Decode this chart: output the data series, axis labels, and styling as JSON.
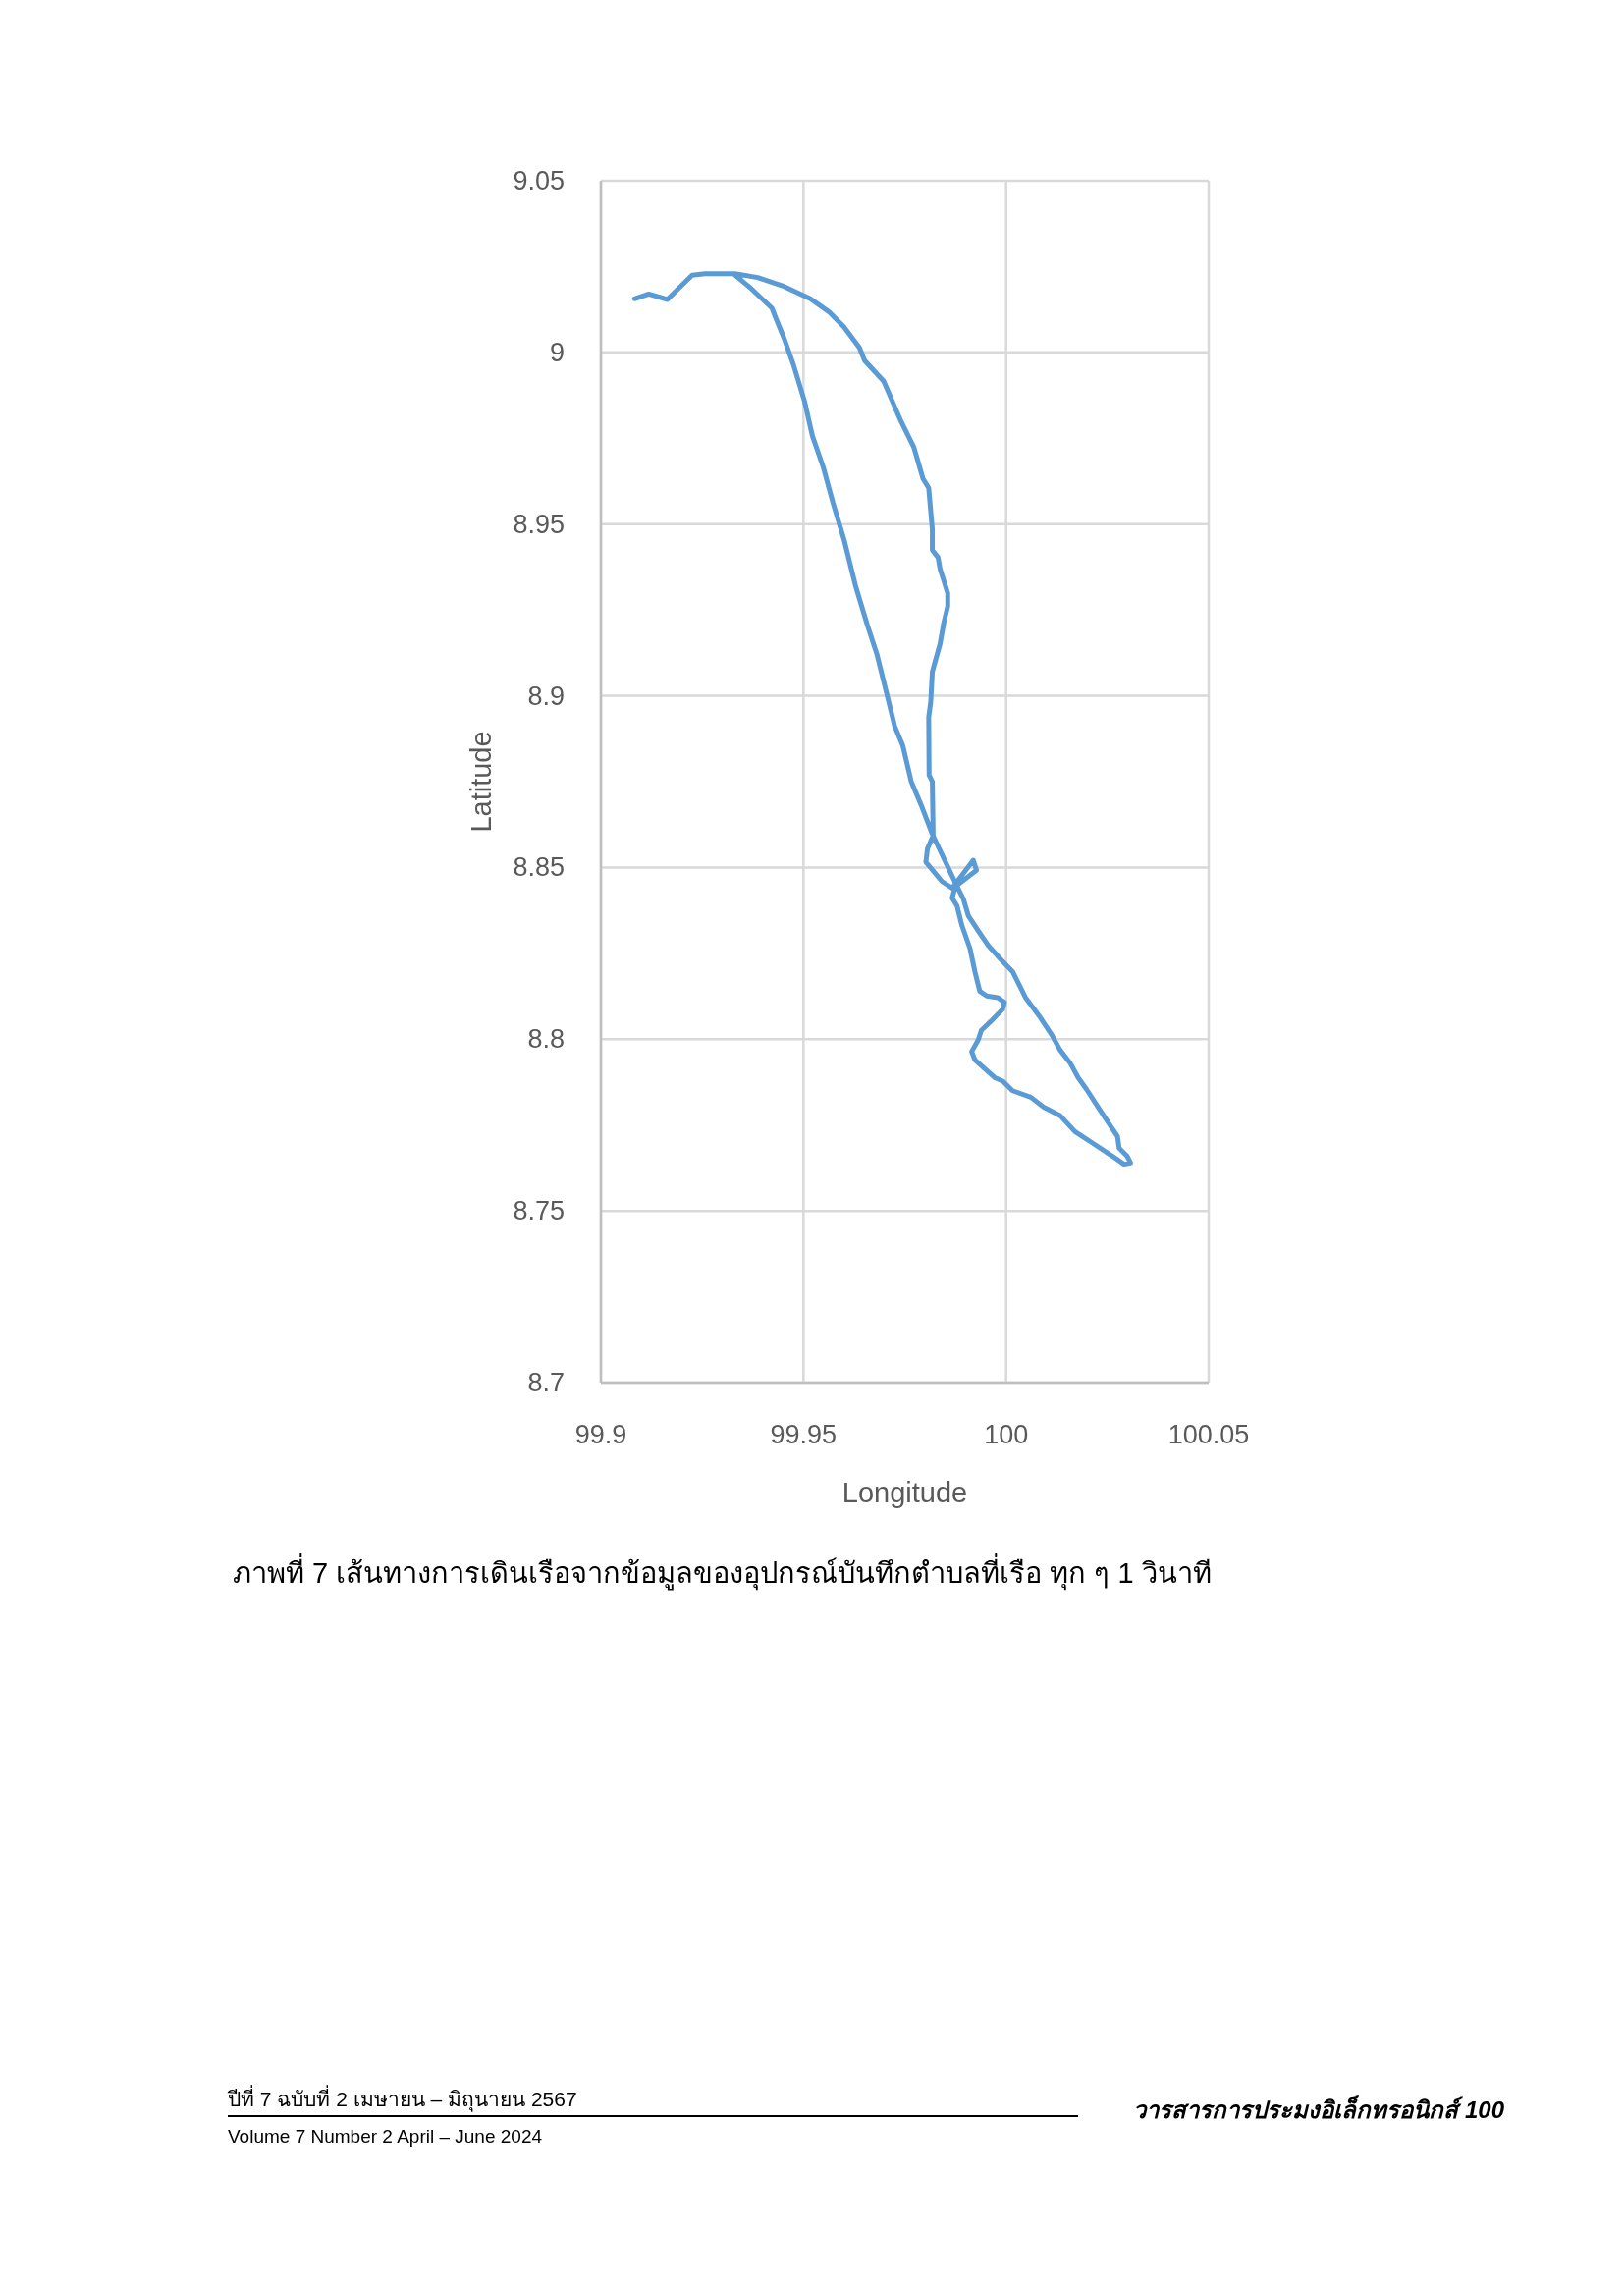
{
  "chart_data": {
    "type": "line",
    "xlabel": "Longitude",
    "ylabel": "Latitude",
    "xlim": [
      99.9,
      100.05
    ],
    "ylim": [
      8.7,
      9.05
    ],
    "xticks": [
      99.9,
      99.95,
      100,
      100.05
    ],
    "yticks": [
      8.7,
      8.75,
      8.8,
      8.85,
      8.9,
      8.95,
      9,
      9.05
    ],
    "grid": true,
    "line_style": "solid",
    "series": [
      {
        "color": "#5b9bd5",
        "x": [
          99.9083,
          99.9118,
          99.9164,
          99.9225,
          99.9257,
          99.9331,
          99.9387,
          99.9452,
          99.9517,
          99.9563,
          99.96,
          99.9638,
          99.9651,
          99.9698,
          99.974,
          99.9772,
          99.9795,
          99.9809,
          99.9818,
          99.9818,
          99.9832,
          99.9837,
          99.9856,
          99.9856,
          99.9846,
          99.9837,
          99.9818,
          99.9814,
          99.9809,
          99.981,
          99.9818,
          99.982,
          99.9806,
          99.9802,
          99.9842,
          99.9867,
          99.9919,
          99.9927,
          99.9875,
          99.9867,
          99.9879,
          99.9891,
          99.9911,
          99.9923,
          99.9935,
          99.9952,
          99.998,
          99.9996,
          99.9992,
          99.9964,
          99.9939,
          99.9931,
          99.9915,
          99.9923,
          99.9972,
          99.9992,
          100.0016,
          100.0061,
          100.0093,
          100.0133,
          100.017,
          100.0214,
          100.0263,
          100.0291,
          100.0307,
          100.0299,
          100.0279,
          100.0275,
          100.0259,
          100.023,
          100.0198,
          100.0178,
          100.0158,
          100.0133,
          100.0113,
          100.0081,
          100.0048,
          100.0016,
          99.9988,
          99.9956,
          99.9931,
          99.9907,
          99.9895,
          99.9879,
          99.9818,
          99.979,
          99.9766,
          99.9745,
          99.9725,
          99.9705,
          99.9681,
          99.9657,
          99.9628,
          99.96,
          99.9573,
          99.9549,
          99.9522,
          99.9503,
          99.9475,
          99.9452,
          99.9433,
          99.9422,
          99.9368,
          99.9331
        ],
        "values": [
          9.0156,
          9.017,
          9.0154,
          9.0225,
          9.0229,
          9.0229,
          9.0218,
          9.0192,
          9.0156,
          9.0118,
          9.0074,
          9.0014,
          8.9976,
          8.9916,
          8.9801,
          8.9725,
          8.9632,
          8.9605,
          8.9484,
          8.9424,
          8.9403,
          8.937,
          8.9299,
          8.9261,
          8.9211,
          8.9151,
          8.907,
          8.8982,
          8.8938,
          8.8769,
          8.875,
          8.8593,
          8.8555,
          8.8516,
          8.8459,
          8.844,
          8.8521,
          8.8492,
          8.8445,
          8.8411,
          8.8388,
          8.8331,
          8.8264,
          8.8197,
          8.814,
          8.8126,
          8.8121,
          8.8107,
          8.8088,
          8.8054,
          8.8026,
          8.7997,
          8.7964,
          8.794,
          8.7888,
          8.7878,
          8.785,
          8.7831,
          8.7802,
          8.7778,
          8.7731,
          8.7697,
          8.7659,
          8.7636,
          8.764,
          8.7659,
          8.7683,
          8.7717,
          8.7745,
          8.7797,
          8.7855,
          8.7888,
          8.7931,
          8.7969,
          8.8012,
          8.8069,
          8.8121,
          8.8197,
          8.8231,
          8.8273,
          8.8316,
          8.8359,
          8.8407,
          8.8445,
          8.8597,
          8.8683,
          8.875,
          8.8855,
          8.8912,
          8.9008,
          8.9122,
          8.9208,
          8.9322,
          8.9455,
          8.9561,
          8.9665,
          8.9757,
          8.9856,
          8.9965,
          9.0041,
          9.0096,
          9.0129,
          9.0189,
          9.0225
        ]
      }
    ],
    "annotations": [
      "ภาพที่ 7  เส้นทางการเดินเรือจากข้อมูลของอุปกรณ์บันทึกตำบลที่เรือ ทุก ๆ 1 วินาที",
      "ปีที่ 7 ฉบับที่ 2 เมษายน – มิถุนายน 2567",
      "Volume 7 Number 2 April – June 2024",
      "วารสารการประมงอิเล็กทรอนิกส์ 100"
    ]
  }
}
